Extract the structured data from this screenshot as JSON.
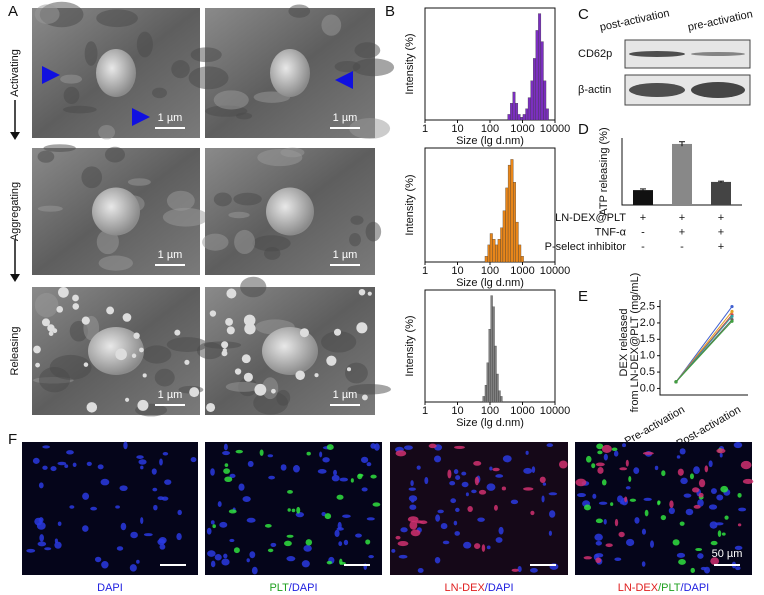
{
  "panel_a": {
    "label": "A",
    "rows": [
      "Activating",
      "Aggregating",
      "Releasing"
    ],
    "scale_bar": "1 µm"
  },
  "panel_b": {
    "label": "B",
    "charts": [
      {
        "type": "histogram",
        "xlabel": "Size (lg d.nm)",
        "ylabel": "Intensity (%)",
        "log_x": true,
        "xlim": [
          1,
          10000
        ],
        "xticks": [
          1,
          10,
          100,
          1000,
          10000
        ],
        "ylim": [
          0,
          20
        ],
        "color": "#7b2fbf",
        "bins": [
          350,
          420,
          500,
          600,
          720,
          860,
          1030,
          1240,
          1480,
          1780,
          2130,
          2560,
          3070,
          3680,
          4420,
          5300,
          6360
        ],
        "values": [
          1,
          3,
          5,
          3,
          1,
          0.5,
          1,
          2,
          4,
          7,
          11,
          16,
          19,
          14,
          7,
          2
        ]
      },
      {
        "type": "histogram",
        "xlabel": "Size (lg d.nm)",
        "ylabel": "Intensity (%)",
        "log_x": true,
        "xlim": [
          1,
          10000
        ],
        "xticks": [
          1,
          10,
          100,
          1000,
          10000
        ],
        "ylim": [
          0,
          20
        ],
        "color": "#e8861a",
        "bins": [
          70,
          85,
          100,
          120,
          145,
          175,
          210,
          250,
          300,
          360,
          430,
          520,
          620,
          750,
          900,
          1080
        ],
        "values": [
          1,
          3,
          5,
          4,
          3,
          4,
          6,
          9,
          13,
          17,
          18,
          14,
          7,
          3,
          1
        ]
      },
      {
        "type": "histogram",
        "xlabel": "Size (lg d.nm)",
        "ylabel": "Intensity (%)",
        "log_x": true,
        "xlim": [
          1,
          10000
        ],
        "xticks": [
          1,
          10,
          100,
          1000,
          10000
        ],
        "ylim": [
          0,
          20
        ],
        "color": "#808080",
        "bins": [
          60,
          70,
          80,
          92,
          105,
          120,
          138,
          158,
          182,
          210,
          240
        ],
        "values": [
          1,
          3,
          7,
          13,
          19,
          17,
          10,
          5,
          2,
          1
        ]
      }
    ]
  },
  "panel_c": {
    "label": "C",
    "lanes": [
      "post-activation",
      "pre-activation"
    ],
    "rows": [
      "CD62p",
      "β-actin"
    ]
  },
  "panel_d": {
    "label": "D",
    "chart": {
      "type": "bar",
      "ylabel": "ATP releasing (%)",
      "values": [
        100,
        410,
        155
      ],
      "errors": [
        8,
        15,
        5
      ],
      "colors": [
        "#111111",
        "#888888",
        "#444444"
      ],
      "ylim": [
        0,
        450
      ]
    },
    "conditions": [
      {
        "name": "LN-DEX@PLT",
        "marks": [
          "+",
          "+",
          "+"
        ]
      },
      {
        "name": "TNF-α",
        "marks": [
          "-",
          "+",
          "+"
        ]
      },
      {
        "name": "P-select inhibitor",
        "marks": [
          "-",
          "-",
          "+"
        ]
      }
    ]
  },
  "panel_e": {
    "label": "E",
    "chart": {
      "type": "line",
      "ylabel": [
        "DEX released",
        "from LN-DEX@PLT (mg/mL)"
      ],
      "categories": [
        "Pre-activation",
        "Post-activation"
      ],
      "ylim": [
        -0.2,
        2.7
      ],
      "yticks": [
        {
          "value": 0,
          "label": "0.0"
        },
        0.5,
        {
          "value": 1,
          "label": "1.0"
        },
        1.5,
        {
          "value": 2,
          "label": "2.0"
        },
        2.5
      ],
      "series": [
        {
          "color": "#4060d0",
          "values": [
            0.2,
            2.5
          ]
        },
        {
          "color": "#e0a020",
          "values": [
            0.2,
            2.35
          ]
        },
        {
          "color": "#d04040",
          "values": [
            0.2,
            2.25
          ]
        },
        {
          "color": "#30a0a0",
          "values": [
            0.2,
            2.2
          ]
        },
        {
          "color": "#606060",
          "values": [
            0.2,
            2.1
          ]
        },
        {
          "color": "#40a040",
          "values": [
            0.2,
            2.05
          ]
        }
      ]
    }
  },
  "panel_f": {
    "label": "F",
    "scale_bar": "50 µm",
    "images": [
      {
        "caption": [
          {
            "text": "DAPI",
            "color": "#2020e0"
          }
        ]
      },
      {
        "caption": [
          {
            "text": "PLT",
            "color": "#20a020"
          },
          {
            "text": "/",
            "color": "#2020e0"
          },
          {
            "text": "DAPI",
            "color": "#2020e0"
          }
        ]
      },
      {
        "caption": [
          {
            "text": "LN-DEX",
            "color": "#e02020"
          },
          {
            "text": "/",
            "color": "#2020e0"
          },
          {
            "text": "DAPI",
            "color": "#2020e0"
          }
        ]
      },
      {
        "caption": [
          {
            "text": "LN-DEX",
            "color": "#e02020"
          },
          {
            "text": "/",
            "color": "#20a020"
          },
          {
            "text": "PLT",
            "color": "#20a020"
          },
          {
            "text": "/",
            "color": "#2020e0"
          },
          {
            "text": "DAPI",
            "color": "#2020e0"
          }
        ]
      }
    ]
  }
}
